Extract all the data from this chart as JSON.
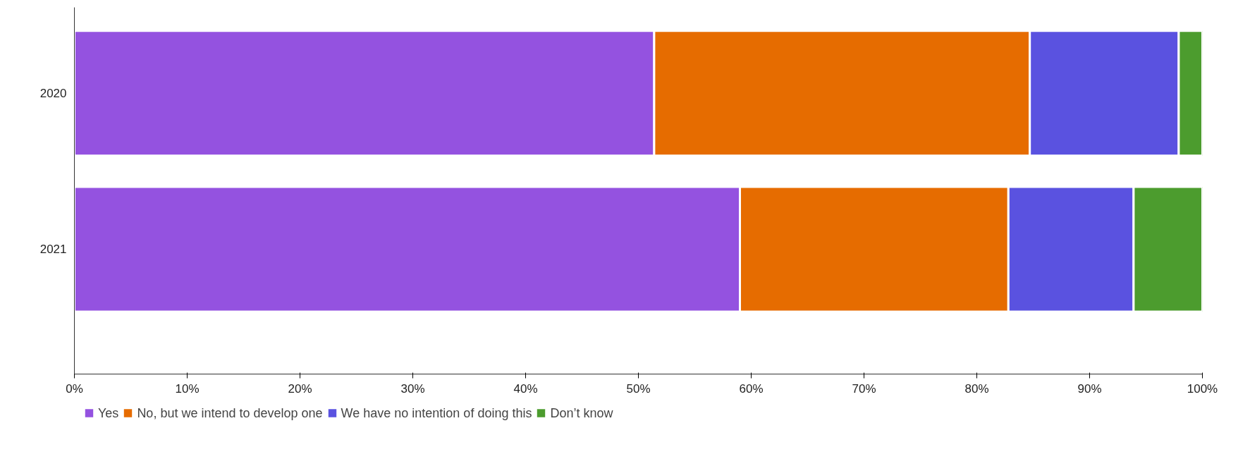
{
  "chart_data": {
    "type": "bar",
    "orientation": "horizontal",
    "stacked": true,
    "categories": [
      "2020",
      "2021"
    ],
    "series": [
      {
        "name": "Yes",
        "color": "#9452e0",
        "values": [
          51.4,
          59.0
        ]
      },
      {
        "name": "No, but we intend to develop one",
        "color": "#e66c00",
        "values": [
          33.3,
          23.8
        ]
      },
      {
        "name": "We have no intention of doing this",
        "color": "#5a52e0",
        "values": [
          13.2,
          11.1
        ]
      },
      {
        "name": "Don’t know",
        "color": "#4c9c2e",
        "values": [
          2.1,
          6.1
        ]
      }
    ],
    "xlim": [
      0,
      100
    ],
    "xticks": [
      {
        "value": 0,
        "label": "0%"
      },
      {
        "value": 10,
        "label": "10%"
      },
      {
        "value": 20,
        "label": "20%"
      },
      {
        "value": 30,
        "label": "30%"
      },
      {
        "value": 40,
        "label": "40%"
      },
      {
        "value": 50,
        "label": "50%"
      },
      {
        "value": 60,
        "label": "60%"
      },
      {
        "value": 70,
        "label": "70%"
      },
      {
        "value": 80,
        "label": "80%"
      },
      {
        "value": 90,
        "label": "90%"
      },
      {
        "value": 100,
        "label": "100%"
      }
    ],
    "grid": false,
    "legend": "bottom left"
  }
}
